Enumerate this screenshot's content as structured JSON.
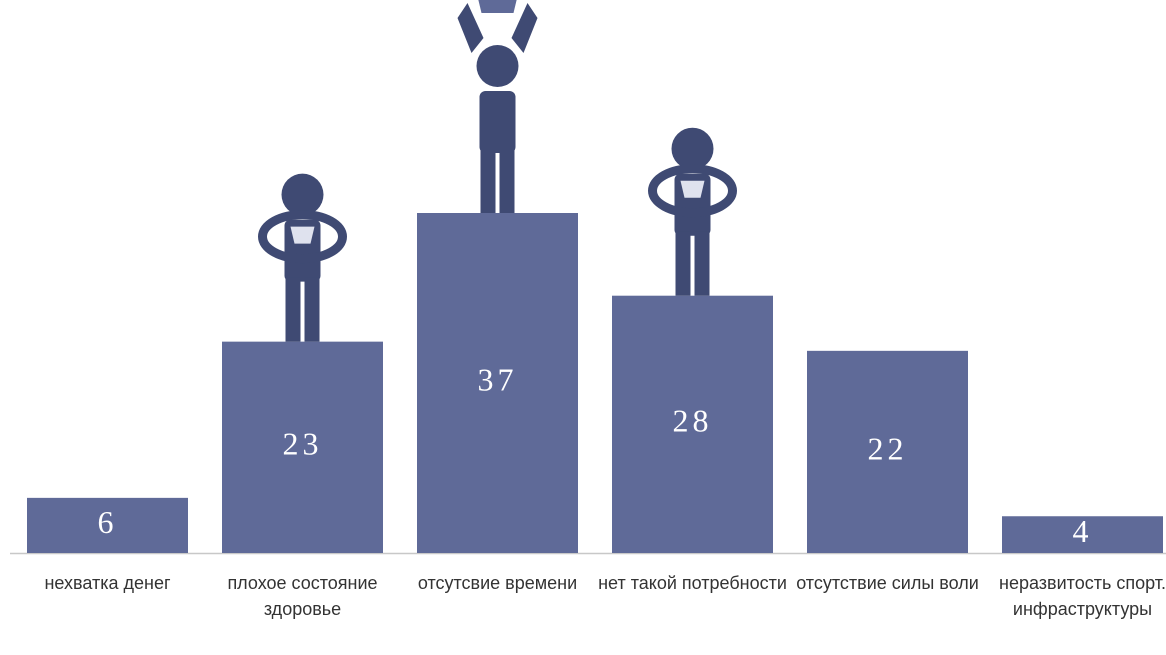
{
  "chart_data": {
    "type": "bar",
    "categories": [
      "нехватка денег",
      "плохое состояние здоровье",
      "отсутсвие времени",
      "нет такой потребности",
      "отсутствие силы воли",
      "неразвитость спорт. инфраструктуры"
    ],
    "values": [
      6,
      23,
      37,
      28,
      22,
      4
    ],
    "color": "#5f6a98"
  }
}
